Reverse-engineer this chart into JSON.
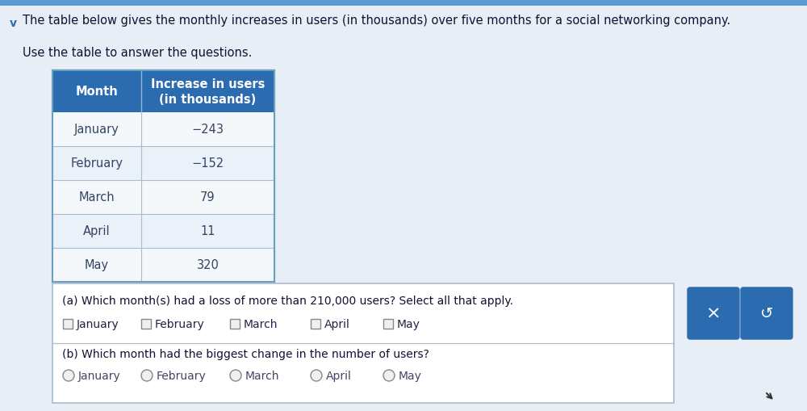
{
  "title_text": "The table below gives the monthly increases in users (in thousands) over five months for a social networking company.",
  "subtitle_text": "Use the table to answer the questions.",
  "table_header_col1": "Month",
  "table_header_col2": "Increase in users\n(in thousands)",
  "table_rows": [
    [
      "January",
      "−243"
    ],
    [
      "February",
      "−152"
    ],
    [
      "March",
      "79"
    ],
    [
      "April",
      "11"
    ],
    [
      "May",
      "320"
    ]
  ],
  "header_bg": "#2B6CB0",
  "header_fg": "#FFFFFF",
  "row_bg_light": "#EAF1F8",
  "row_bg_white": "#F5F8FB",
  "row_border": "#A8BDD0",
  "table_outer_border": "#6A9FC0",
  "question_a": "(a) Which month(s) had a loss of more than 210,000 users? Select all that apply.",
  "question_b": "(b) Which month had the biggest change in the number of users?",
  "months": [
    "January",
    "February",
    "March",
    "April",
    "May"
  ],
  "page_bg": "#D8E4EF",
  "content_bg": "#E8EEF5",
  "question_box_bg": "#FFFFFF",
  "question_box_border": "#AABBCC",
  "button_color": "#2B6CB0",
  "button_x_text": "×",
  "button_undo_text": "↺",
  "chevron_color": "#2B6CB0",
  "text_color": "#333355",
  "row_text_color": "#334466"
}
